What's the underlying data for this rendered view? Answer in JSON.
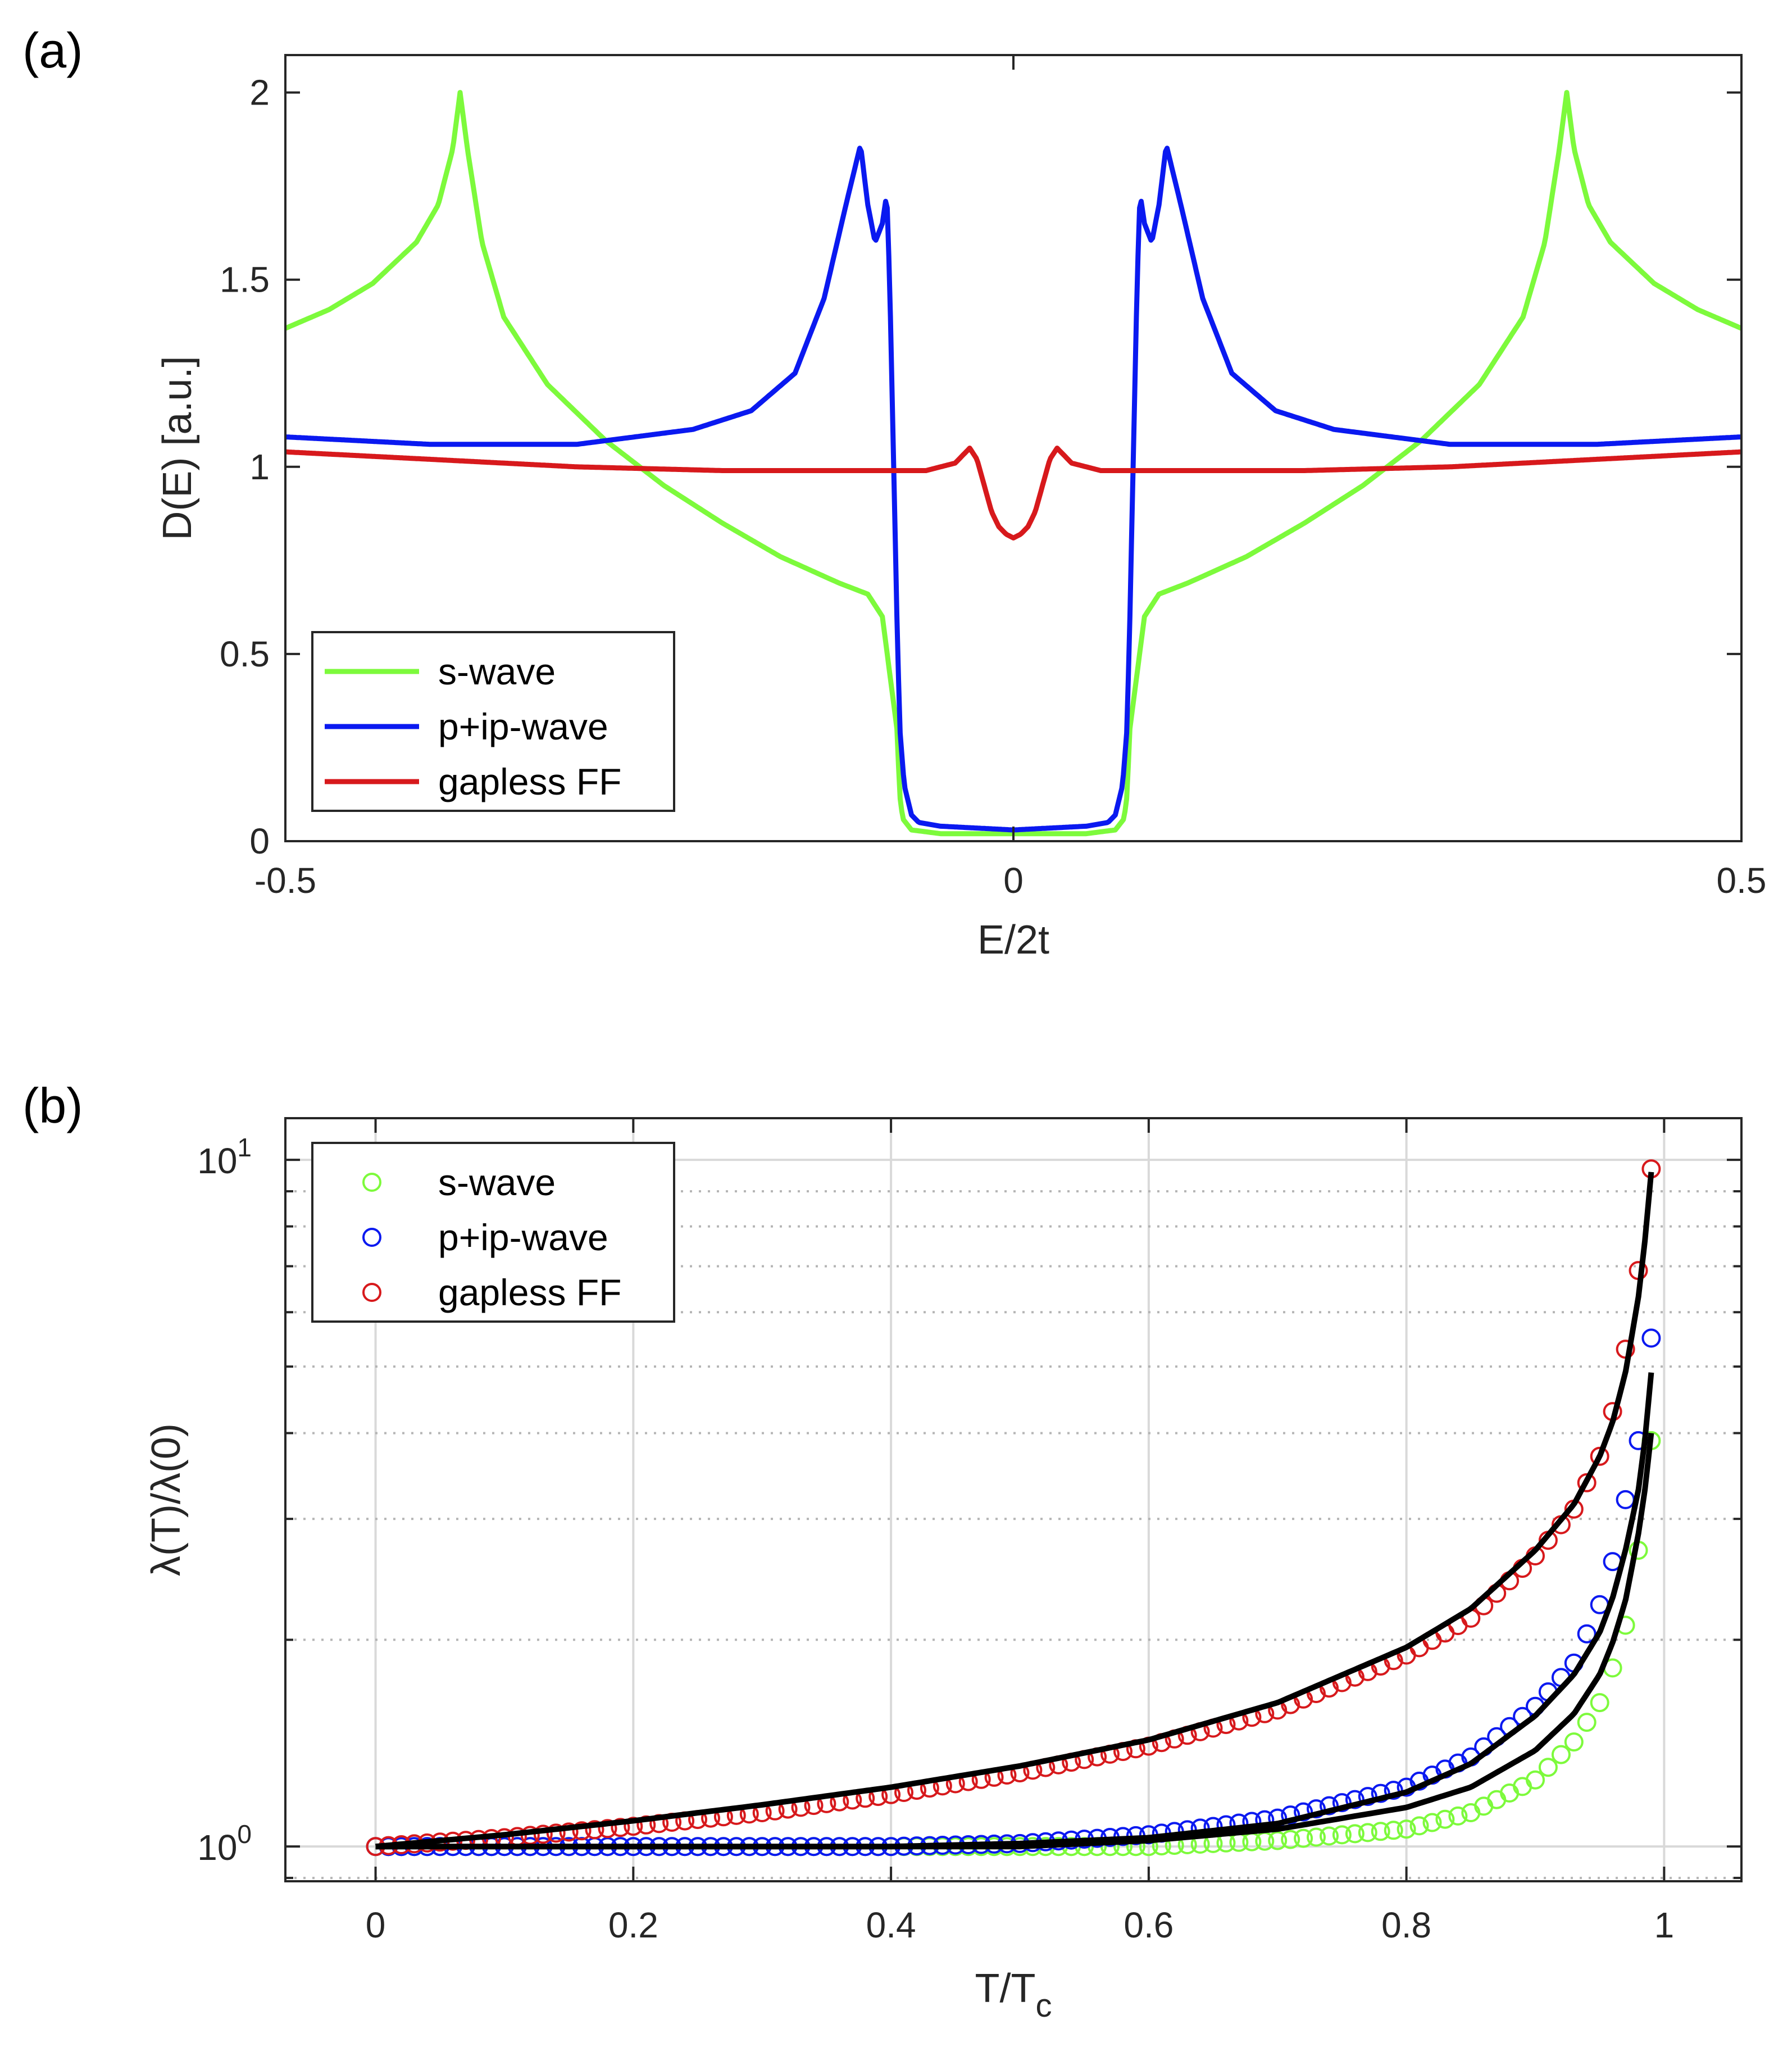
{
  "chart_data": [
    {
      "panel_label": "(a)",
      "type": "line",
      "xlabel": "E/2t",
      "ylabel": "D(E) [a.u.]",
      "xlim": [
        -0.5,
        0.5
      ],
      "ylim": [
        0,
        2.1
      ],
      "xticks": [
        -0.5,
        0,
        0.5
      ],
      "xtick_labels": [
        "-0.5",
        "0",
        "0.5"
      ],
      "yticks": [
        0,
        0.5,
        1,
        1.5,
        2
      ],
      "ytick_labels": [
        "0",
        "0.5",
        "1",
        "1.5",
        "2"
      ],
      "legend_position": "bottom-left",
      "series": [
        {
          "name": "s-wave",
          "color": "#7dfa3c",
          "x": [
            -0.5,
            -0.47,
            -0.44,
            -0.41,
            -0.395,
            -0.385,
            -0.38,
            -0.375,
            -0.365,
            -0.35,
            -0.32,
            -0.28,
            -0.24,
            -0.2,
            -0.16,
            -0.12,
            -0.1,
            -0.09,
            -0.08,
            -0.078,
            -0.076,
            -0.07,
            -0.05,
            0,
            0.05,
            0.07,
            0.076,
            0.078,
            0.08,
            0.09,
            0.1,
            0.12,
            0.16,
            0.2,
            0.24,
            0.28,
            0.32,
            0.35,
            0.365,
            0.375,
            0.38,
            0.385,
            0.395,
            0.41,
            0.44,
            0.47,
            0.5
          ],
          "y": [
            1.37,
            1.42,
            1.49,
            1.6,
            1.7,
            1.85,
            2.0,
            1.85,
            1.6,
            1.4,
            1.22,
            1.07,
            0.95,
            0.85,
            0.76,
            0.69,
            0.66,
            0.6,
            0.3,
            0.12,
            0.06,
            0.03,
            0.02,
            0.02,
            0.02,
            0.03,
            0.06,
            0.12,
            0.3,
            0.6,
            0.66,
            0.69,
            0.76,
            0.85,
            0.95,
            1.07,
            1.22,
            1.4,
            1.6,
            1.85,
            2.0,
            1.85,
            1.7,
            1.6,
            1.49,
            1.42,
            1.37
          ]
        },
        {
          "name": "p+ip-wave",
          "color": "#0a19f0",
          "x": [
            -0.5,
            -0.4,
            -0.3,
            -0.22,
            -0.18,
            -0.15,
            -0.13,
            -0.115,
            -0.105,
            -0.1,
            -0.095,
            -0.09,
            -0.087,
            -0.085,
            -0.08,
            -0.078,
            -0.075,
            -0.07,
            -0.065,
            -0.05,
            0,
            0.05,
            0.065,
            0.07,
            0.075,
            0.078,
            0.08,
            0.085,
            0.087,
            0.09,
            0.095,
            0.1,
            0.105,
            0.115,
            0.13,
            0.15,
            0.18,
            0.22,
            0.3,
            0.4,
            0.5
          ],
          "y": [
            1.08,
            1.06,
            1.06,
            1.1,
            1.15,
            1.25,
            1.45,
            1.7,
            1.86,
            1.7,
            1.6,
            1.65,
            1.73,
            1.5,
            0.6,
            0.3,
            0.15,
            0.07,
            0.05,
            0.04,
            0.03,
            0.04,
            0.05,
            0.07,
            0.15,
            0.3,
            0.6,
            1.5,
            1.73,
            1.65,
            1.6,
            1.7,
            1.86,
            1.7,
            1.45,
            1.25,
            1.15,
            1.1,
            1.06,
            1.06,
            1.08
          ]
        },
        {
          "name": "gapless FF",
          "color": "#d7191c",
          "x": [
            -0.5,
            -0.4,
            -0.3,
            -0.2,
            -0.1,
            -0.06,
            -0.04,
            -0.03,
            -0.025,
            -0.02,
            -0.015,
            -0.01,
            -0.005,
            0,
            0.005,
            0.01,
            0.015,
            0.02,
            0.025,
            0.03,
            0.04,
            0.06,
            0.1,
            0.2,
            0.3,
            0.4,
            0.5
          ],
          "y": [
            1.04,
            1.02,
            1.0,
            0.99,
            0.99,
            0.99,
            1.01,
            1.05,
            1.02,
            0.95,
            0.88,
            0.84,
            0.82,
            0.81,
            0.82,
            0.84,
            0.88,
            0.95,
            1.02,
            1.05,
            1.01,
            0.99,
            0.99,
            0.99,
            1.0,
            1.02,
            1.04
          ]
        }
      ]
    },
    {
      "panel_label": "(b)",
      "type": "scatter",
      "xlabel": "T/T",
      "xlabel_sub": "c",
      "ylabel": "λ(T)/λ(0)",
      "yscale": "log",
      "xlim": [
        -0.07,
        1.06
      ],
      "ylim": [
        0.89,
        11.5
      ],
      "xticks": [
        0,
        0.2,
        0.4,
        0.6,
        0.8,
        1
      ],
      "xtick_labels": [
        "0",
        "0.2",
        "0.4",
        "0.6",
        "0.8",
        "1"
      ],
      "yticks": [
        1,
        10
      ],
      "ytick_labels": [
        {
          "base": "10",
          "exp": "0"
        },
        {
          "base": "10",
          "exp": "1"
        }
      ],
      "minor_yticks": [
        0.9,
        2,
        3,
        4,
        5,
        6,
        7,
        8,
        9
      ],
      "grid": true,
      "legend_position": "top-left",
      "marker_step": 0.01,
      "marker_max": 0.99,
      "series": [
        {
          "name": "s-wave",
          "color": "#7dfa3c",
          "model": "s",
          "markers_x": [
            0,
            0.3,
            0.5,
            0.6,
            0.7,
            0.8,
            0.85,
            0.9,
            0.93,
            0.95,
            0.96,
            0.97,
            0.98,
            0.99
          ],
          "markers_y": [
            1.0,
            1.0,
            1.0,
            1.0,
            1.02,
            1.06,
            1.12,
            1.25,
            1.42,
            1.62,
            1.82,
            2.1,
            2.7,
            3.9
          ]
        },
        {
          "name": "p+ip-wave",
          "color": "#0a19f0",
          "model": "p",
          "markers_x": [
            0,
            0.3,
            0.4,
            0.5,
            0.6,
            0.7,
            0.8,
            0.85,
            0.9,
            0.93,
            0.95,
            0.96,
            0.97,
            0.98,
            0.99
          ],
          "markers_y": [
            1.0,
            1.0,
            1.0,
            1.01,
            1.04,
            1.1,
            1.22,
            1.35,
            1.6,
            1.85,
            2.25,
            2.6,
            3.2,
            3.9,
            5.5
          ]
        },
        {
          "name": "gapless FF",
          "color": "#d7191c",
          "model": "ff",
          "markers_x": [
            0,
            0.1,
            0.2,
            0.3,
            0.4,
            0.5,
            0.6,
            0.7,
            0.8,
            0.85,
            0.9,
            0.93,
            0.95,
            0.96,
            0.97,
            0.98,
            0.99
          ],
          "markers_y": [
            1.0,
            1.03,
            1.07,
            1.12,
            1.19,
            1.28,
            1.4,
            1.58,
            1.9,
            2.15,
            2.65,
            3.1,
            3.7,
            4.3,
            5.3,
            6.9,
            9.7
          ]
        }
      ],
      "fit_lines": [
        {
          "name": "s-wave fit",
          "color": "#000000",
          "x": [
            0,
            0.4,
            0.5,
            0.6,
            0.7,
            0.8,
            0.85,
            0.9,
            0.93,
            0.95,
            0.96,
            0.97,
            0.98,
            0.985,
            0.99
          ],
          "y": [
            1.0,
            1.0,
            1.0,
            1.02,
            1.06,
            1.14,
            1.22,
            1.38,
            1.56,
            1.78,
            1.98,
            2.28,
            2.85,
            3.3,
            4.0
          ]
        },
        {
          "name": "p+ip-wave fit",
          "color": "#000000",
          "x": [
            0,
            0.3,
            0.4,
            0.5,
            0.6,
            0.7,
            0.8,
            0.85,
            0.9,
            0.93,
            0.95,
            0.96,
            0.97,
            0.98,
            0.985,
            0.99
          ],
          "y": [
            1.0,
            1.0,
            1.0,
            1.01,
            1.03,
            1.08,
            1.2,
            1.32,
            1.55,
            1.78,
            2.05,
            2.3,
            2.7,
            3.3,
            3.9,
            4.9
          ]
        },
        {
          "name": "gapless FF fit",
          "color": "#000000",
          "x": [
            0,
            0.1,
            0.2,
            0.3,
            0.4,
            0.5,
            0.6,
            0.7,
            0.8,
            0.85,
            0.9,
            0.93,
            0.95,
            0.96,
            0.97,
            0.98,
            0.985,
            0.99
          ],
          "y": [
            1.0,
            1.04,
            1.09,
            1.15,
            1.22,
            1.31,
            1.43,
            1.62,
            1.95,
            2.22,
            2.7,
            3.15,
            3.7,
            4.15,
            4.9,
            6.3,
            7.6,
            9.6
          ]
        }
      ]
    }
  ]
}
